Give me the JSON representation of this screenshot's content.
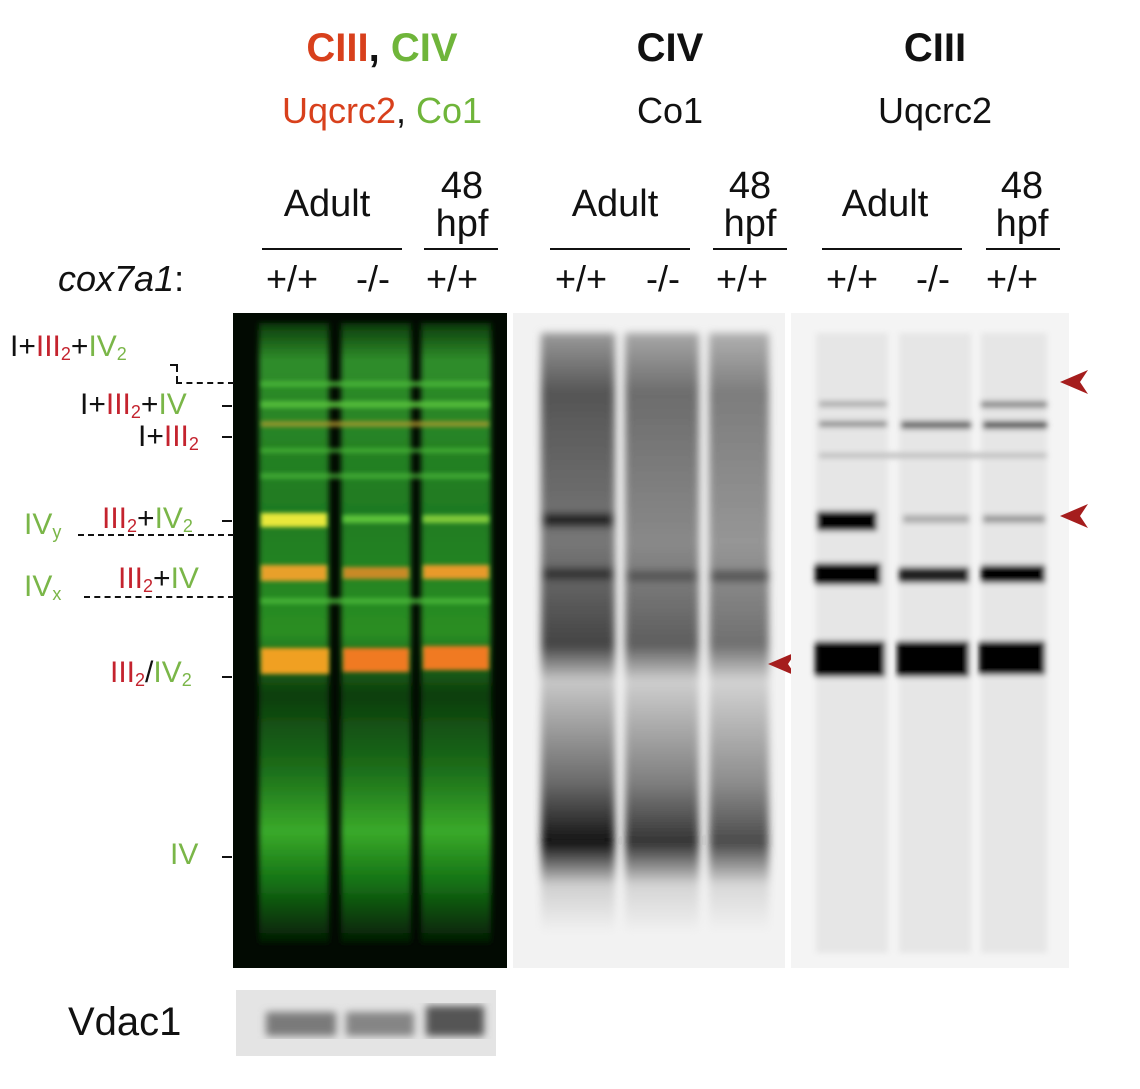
{
  "panels": [
    {
      "title_parts": [
        {
          "text": "CIII",
          "color": "#d8401c"
        },
        {
          "text": ", ",
          "color": "#111111"
        },
        {
          "text": "CIV",
          "color": "#6fb53a"
        }
      ],
      "subtitle_parts": [
        {
          "text": "Uqcrc2",
          "color": "#d8401c"
        },
        {
          "text": ", ",
          "color": "#111111"
        },
        {
          "text": "Co1",
          "color": "#6fb53a"
        }
      ],
      "group_adult": "Adult",
      "group_hpf_1": "48",
      "group_hpf_2": "hpf",
      "lanes": [
        "+/+",
        "-/-",
        "+/+"
      ]
    },
    {
      "title": "CIV",
      "subtitle": "Co1",
      "group_adult": "Adult",
      "group_hpf_1": "48",
      "group_hpf_2": "hpf",
      "lanes": [
        "+/+",
        "-/-",
        "+/+"
      ]
    },
    {
      "title": "CIII",
      "subtitle": "Uqcrc2",
      "group_adult": "Adult",
      "group_hpf_1": "48",
      "group_hpf_2": "hpf",
      "lanes": [
        "+/+",
        "-/-",
        "+/+"
      ]
    }
  ],
  "genotype_label": "cox7a1",
  "genotype_colon": ":",
  "band_labels": {
    "b1": {
      "I": "I",
      "plus1": "+",
      "III": "III",
      "sub2a": "2",
      "plus2": "+",
      "IV": "IV",
      "sub2b": "2"
    },
    "b2": {
      "I": "I",
      "plus1": "+",
      "III": "III",
      "sub2a": "2",
      "plus2": "+",
      "IV": "IV"
    },
    "b3": {
      "I": "I",
      "plus1": "+",
      "III": "III",
      "sub2a": "2"
    },
    "b4": {
      "III": "III",
      "sub2a": "2",
      "plus": "+",
      "IV": "IV",
      "sub2b": "2"
    },
    "b5": {
      "III": "III",
      "sub2a": "2",
      "plus": "+",
      "IV": "IV"
    },
    "b6": {
      "III": "III",
      "sub2a": "2",
      "slash": "/",
      "IV": "IV",
      "sub2b": "2"
    },
    "b7": {
      "IV": "IV"
    },
    "ivy": {
      "IV": "IV",
      "sub": "y"
    },
    "ivx": {
      "IV": "IV",
      "sub": "x"
    }
  },
  "loading_control": "Vdac1",
  "colors": {
    "ciii_red": "#d8401c",
    "civ_green": "#6fb53a",
    "label_red": "#c4232e",
    "arrow_red": "#a51d1d",
    "blot_dark": "#000000"
  }
}
